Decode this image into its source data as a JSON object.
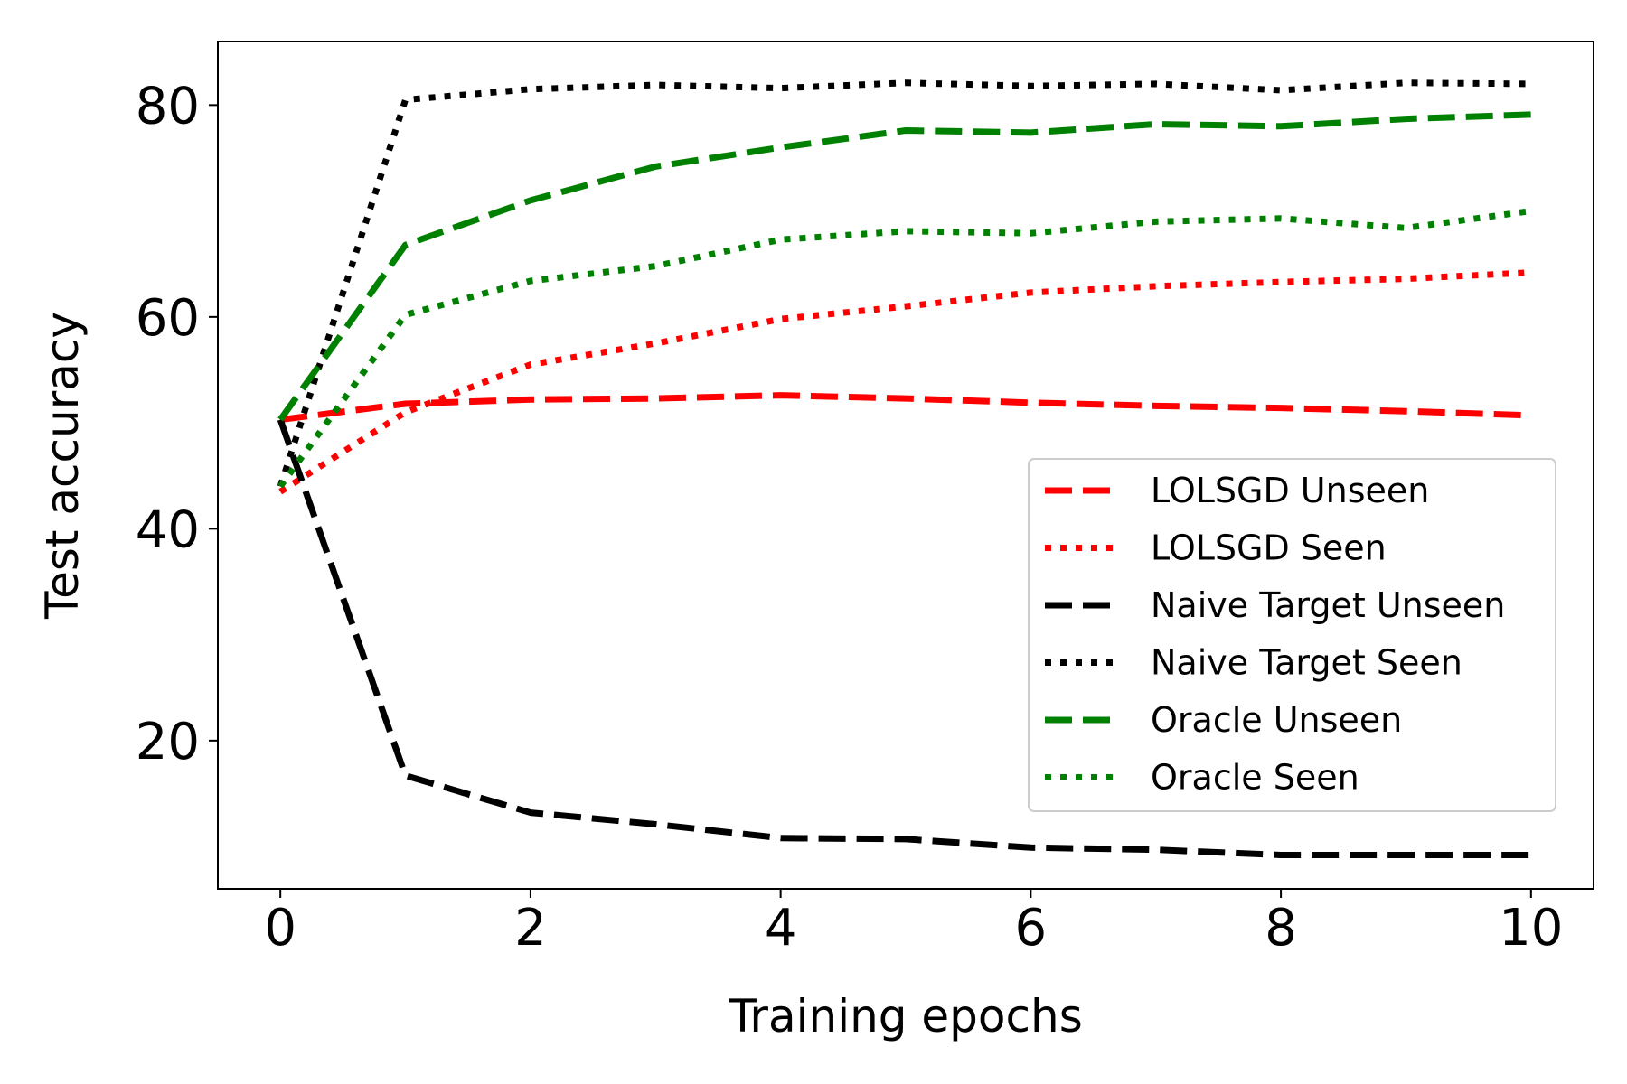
{
  "chart_data": {
    "type": "line",
    "title": "",
    "xlabel": "Training epochs",
    "ylabel": "Test accuracy",
    "xlim": [
      -0.5,
      10.5
    ],
    "ylim": [
      6,
      86
    ],
    "xticks": [
      0,
      2,
      4,
      6,
      8,
      10
    ],
    "xtick_labels": [
      "0",
      "2",
      "4",
      "6",
      "8",
      "10"
    ],
    "yticks": [
      20,
      40,
      60,
      80
    ],
    "ytick_labels": [
      "20",
      "40",
      "60",
      "80"
    ],
    "grid": false,
    "legend_position": "center-right",
    "series": [
      {
        "name": "LOLSGD Unseen",
        "color": "#ff0000",
        "style": "dashed",
        "x": [
          0,
          1,
          2,
          3,
          4,
          5,
          6,
          7,
          8,
          9,
          10
        ],
        "y": [
          50.3,
          51.8,
          52.2,
          52.3,
          52.6,
          52.3,
          51.9,
          51.6,
          51.4,
          51.1,
          50.7
        ]
      },
      {
        "name": "LOLSGD Seen",
        "color": "#ff0000",
        "style": "dotted",
        "x": [
          0,
          1,
          2,
          3,
          4,
          5,
          6,
          7,
          8,
          9,
          10
        ],
        "y": [
          43.5,
          51.0,
          55.5,
          57.5,
          59.8,
          61.0,
          62.3,
          62.9,
          63.3,
          63.6,
          64.2
        ]
      },
      {
        "name": "Naive Target Unseen",
        "color": "#000000",
        "style": "dashed",
        "x": [
          0,
          1,
          2,
          3,
          4,
          5,
          6,
          7,
          8,
          9,
          10
        ],
        "y": [
          50.3,
          16.7,
          13.2,
          12.1,
          10.8,
          10.7,
          9.9,
          9.7,
          9.2,
          9.2,
          9.2
        ]
      },
      {
        "name": "Naive Target Seen",
        "color": "#000000",
        "style": "dotted",
        "x": [
          0,
          1,
          2,
          3,
          4,
          5,
          6,
          7,
          8,
          9,
          10
        ],
        "y": [
          44.0,
          80.5,
          81.5,
          81.9,
          81.6,
          82.1,
          81.8,
          82.0,
          81.4,
          82.1,
          82.0
        ]
      },
      {
        "name": "Oracle Unseen",
        "color": "#008000",
        "style": "dashed",
        "x": [
          0,
          1,
          2,
          3,
          4,
          5,
          6,
          7,
          8,
          9,
          10
        ],
        "y": [
          50.3,
          66.8,
          71.0,
          74.2,
          76.0,
          77.6,
          77.4,
          78.2,
          78.0,
          78.7,
          79.1
        ]
      },
      {
        "name": "Oracle Seen",
        "color": "#008000",
        "style": "dotted",
        "x": [
          0,
          1,
          2,
          3,
          4,
          5,
          6,
          7,
          8,
          9,
          10
        ],
        "y": [
          44.0,
          60.2,
          63.4,
          64.8,
          67.3,
          68.1,
          67.9,
          69.0,
          69.3,
          68.4,
          70.0
        ]
      }
    ]
  }
}
